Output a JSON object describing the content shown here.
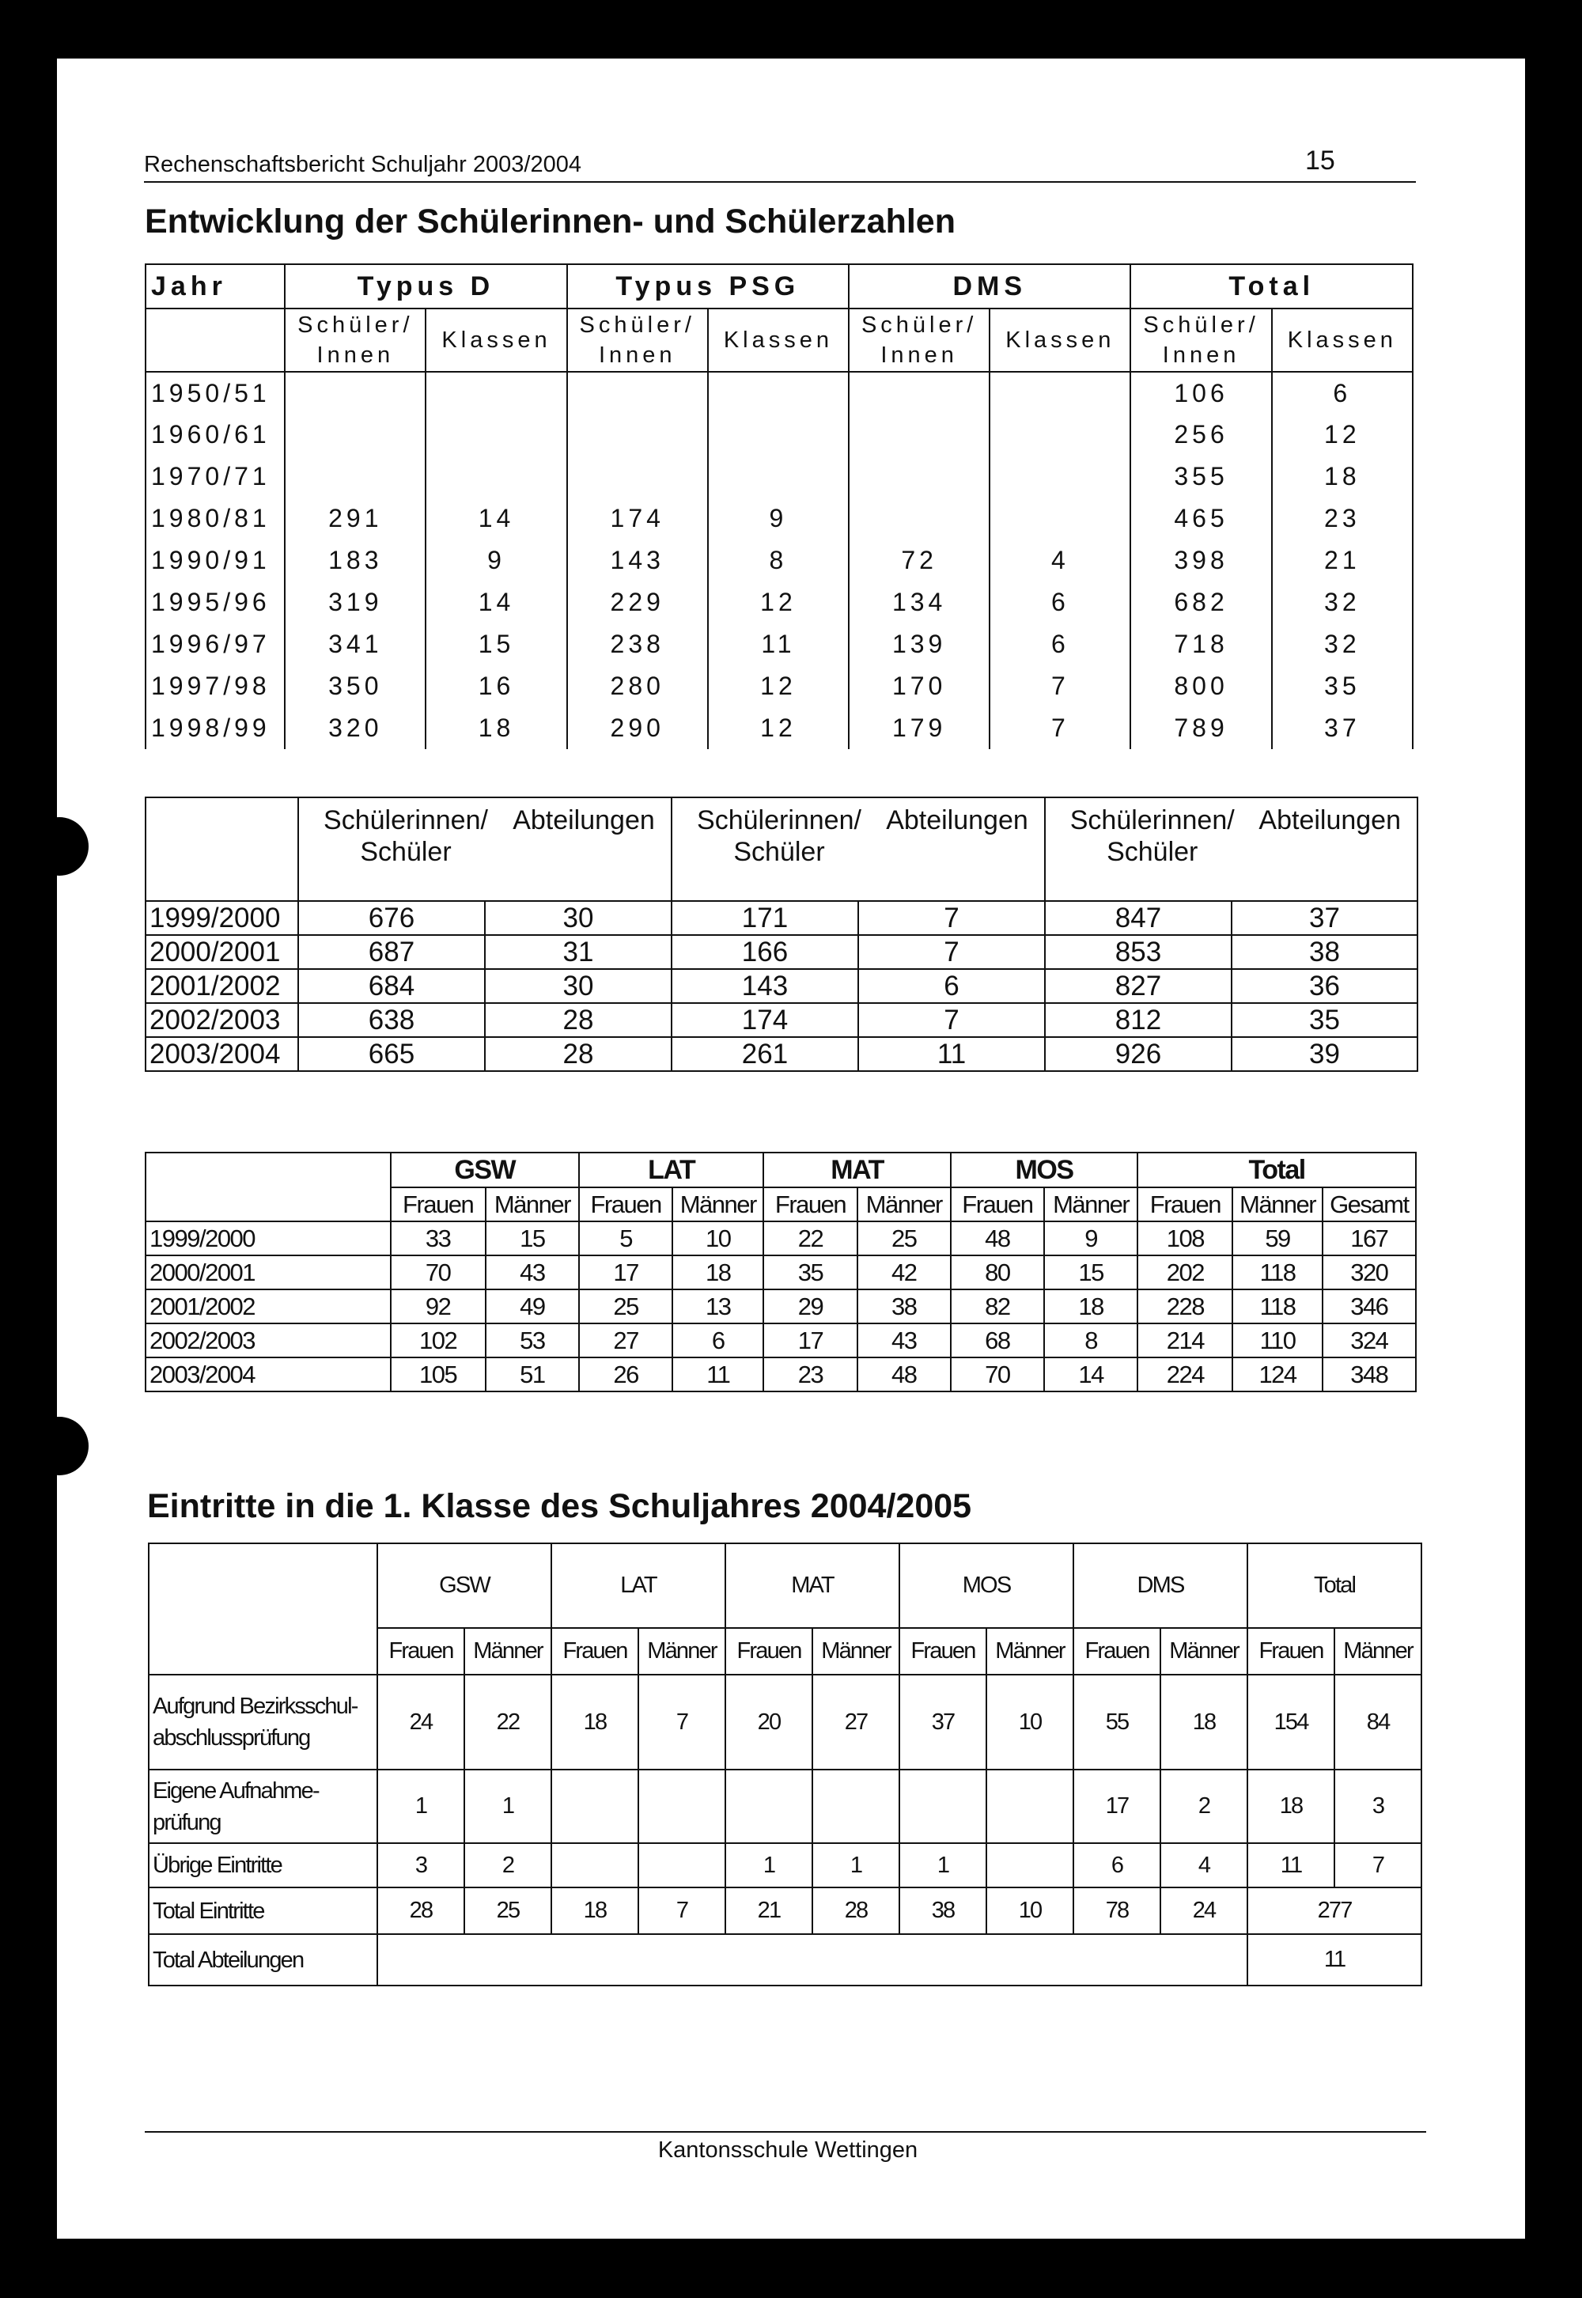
{
  "header": {
    "report_title": "Rechenschaftsbericht Schuljahr 2003/2004",
    "page_number": "15"
  },
  "section1_title": "Entwicklung der Schülerinnen- und Schülerzahlen",
  "table1": {
    "corner": "Jahr",
    "groups": [
      "Typus D",
      "Typus PSG",
      "DMS",
      "Total"
    ],
    "subheaders": [
      "Schüler/ Innen",
      "Klassen"
    ],
    "rows": [
      [
        "1950/51",
        "",
        "",
        "",
        "",
        "",
        "",
        "106",
        "6"
      ],
      [
        "1960/61",
        "",
        "",
        "",
        "",
        "",
        "",
        "256",
        "12"
      ],
      [
        "1970/71",
        "",
        "",
        "",
        "",
        "",
        "",
        "355",
        "18"
      ],
      [
        "1980/81",
        "291",
        "14",
        "174",
        "9",
        "",
        "",
        "465",
        "23"
      ],
      [
        "1990/91",
        "183",
        "9",
        "143",
        "8",
        "72",
        "4",
        "398",
        "21"
      ],
      [
        "1995/96",
        "319",
        "14",
        "229",
        "12",
        "134",
        "6",
        "682",
        "32"
      ],
      [
        "1996/97",
        "341",
        "15",
        "238",
        "11",
        "139",
        "6",
        "718",
        "32"
      ],
      [
        "1997/98",
        "350",
        "16",
        "280",
        "12",
        "170",
        "7",
        "800",
        "35"
      ],
      [
        "1998/99",
        "320",
        "18",
        "290",
        "12",
        "179",
        "7",
        "789",
        "37"
      ]
    ]
  },
  "table2": {
    "header_students": "Schülerinnen/ Schüler",
    "header_departments": "Abteilungen",
    "rows": [
      [
        "1999/2000",
        "676",
        "30",
        "171",
        "7",
        "847",
        "37"
      ],
      [
        "2000/2001",
        "687",
        "31",
        "166",
        "7",
        "853",
        "38"
      ],
      [
        "2001/2002",
        "684",
        "30",
        "143",
        "6",
        "827",
        "36"
      ],
      [
        "2002/2003",
        "638",
        "28",
        "174",
        "7",
        "812",
        "35"
      ],
      [
        "2003/2004",
        "665",
        "28",
        "261",
        "11",
        "926",
        "39"
      ]
    ]
  },
  "table3": {
    "groups": [
      "GSW",
      "LAT",
      "MAT",
      "MOS",
      "Total"
    ],
    "sub": [
      "Frauen",
      "Männer",
      "Frauen",
      "Männer",
      "Frauen",
      "Männer",
      "Frauen",
      "Männer",
      "Frauen",
      "Männer",
      "Gesamt"
    ],
    "rows": [
      [
        "1999/2000",
        "33",
        "15",
        "5",
        "10",
        "22",
        "25",
        "48",
        "9",
        "108",
        "59",
        "167"
      ],
      [
        "2000/2001",
        "70",
        "43",
        "17",
        "18",
        "35",
        "42",
        "80",
        "15",
        "202",
        "118",
        "320"
      ],
      [
        "2001/2002",
        "92",
        "49",
        "25",
        "13",
        "29",
        "38",
        "82",
        "18",
        "228",
        "118",
        "346"
      ],
      [
        "2002/2003",
        "102",
        "53",
        "27",
        "6",
        "17",
        "43",
        "68",
        "8",
        "214",
        "110",
        "324"
      ],
      [
        "2003/2004",
        "105",
        "51",
        "26",
        "11",
        "23",
        "48",
        "70",
        "14",
        "224",
        "124",
        "348"
      ]
    ]
  },
  "section2_title": "Eintritte in die 1. Klasse des Schuljahres 2004/2005",
  "table4": {
    "groups": [
      "GSW",
      "LAT",
      "MAT",
      "MOS",
      "DMS",
      "Total"
    ],
    "sub": [
      "Frauen",
      "Männer"
    ],
    "rows": [
      {
        "label": "Aufgrund Bezirksschul-abschlussprüfung",
        "values": [
          "24",
          "22",
          "18",
          "7",
          "20",
          "27",
          "37",
          "10",
          "55",
          "18",
          "154",
          "84"
        ]
      },
      {
        "label": "Eigene Aufnahme-prüfung",
        "values": [
          "1",
          "1",
          "",
          "",
          "",
          "",
          "",
          "",
          "17",
          "2",
          "18",
          "3"
        ]
      },
      {
        "label": "Übrige Eintritte",
        "values": [
          "3",
          "2",
          "",
          "",
          "1",
          "1",
          "1",
          "",
          "6",
          "4",
          "11",
          "7"
        ]
      },
      {
        "label": "Total Eintritte",
        "values": [
          "28",
          "25",
          "18",
          "7",
          "21",
          "28",
          "38",
          "10",
          "78",
          "24"
        ],
        "total": "277"
      },
      {
        "label": "Total Abteilungen",
        "values": [],
        "total": "11"
      }
    ]
  },
  "footer": {
    "school": "Kantonsschule Wettingen"
  }
}
